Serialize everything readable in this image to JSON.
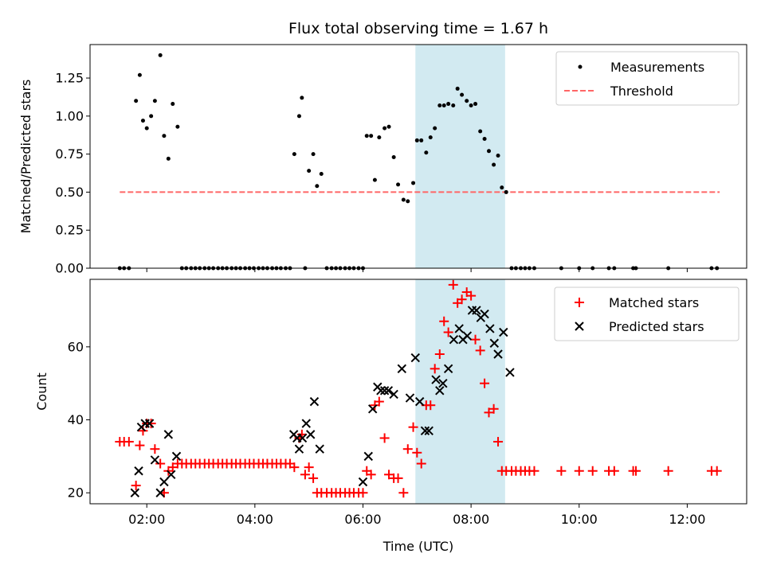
{
  "chart_data": {
    "type": "scatter",
    "title": "Flux total observing time = 1.67 h",
    "xlabel": "Time (UTC)",
    "x_unit": "hours since 00:00 UTC",
    "xlim": [
      0.95,
      13.1
    ],
    "xticks": [
      2,
      4,
      6,
      8,
      10,
      12
    ],
    "xtick_labels": [
      "02:00",
      "04:00",
      "06:00",
      "08:00",
      "10:00",
      "12:00"
    ],
    "highlight_span": {
      "start": 6.97,
      "end": 8.63,
      "color": "#add8e6"
    },
    "colors": {
      "measurement": "#000000",
      "threshold": "#ff6666",
      "matched": "#ff0000",
      "predicted": "#000000",
      "span": "#add8e6"
    },
    "panels": {
      "top": {
        "ylabel": "Matched/Predicted stars",
        "ylim": [
          0,
          1.47
        ],
        "yticks": [
          0,
          0.25,
          0.5,
          0.75,
          1.0,
          1.25
        ],
        "ytick_labels": [
          "0.00",
          "0.25",
          "0.50",
          "0.75",
          "1.00",
          "1.25"
        ],
        "legend": {
          "position": "upper right",
          "entries": [
            "Measurements",
            "Threshold"
          ]
        },
        "threshold": {
          "value": 0.5,
          "x_start": 1.5,
          "x_end": 12.6
        },
        "measurements": {
          "x": [
            1.5,
            1.58,
            1.67,
            1.8,
            1.87,
            1.93,
            2.0,
            2.08,
            2.15,
            2.25,
            2.32,
            2.4,
            2.48,
            2.57,
            2.65,
            2.73,
            2.82,
            2.9,
            2.98,
            3.07,
            3.15,
            3.23,
            3.32,
            3.4,
            3.48,
            3.57,
            3.65,
            3.73,
            3.82,
            3.9,
            3.98,
            4.07,
            4.15,
            4.23,
            4.32,
            4.4,
            4.48,
            4.57,
            4.65,
            4.73,
            4.82,
            4.87,
            4.93,
            5.0,
            5.08,
            5.15,
            5.23,
            5.33,
            5.42,
            5.5,
            5.58,
            5.67,
            5.75,
            5.83,
            5.92,
            6.0,
            6.07,
            6.15,
            6.22,
            6.3,
            6.4,
            6.48,
            6.57,
            6.65,
            6.75,
            6.83,
            6.93,
            7.0,
            7.08,
            7.17,
            7.25,
            7.33,
            7.42,
            7.5,
            7.58,
            7.67,
            7.75,
            7.83,
            7.92,
            8.0,
            8.08,
            8.17,
            8.25,
            8.33,
            8.42,
            8.5,
            8.57,
            8.65,
            8.75,
            8.83,
            8.92,
            9.0,
            9.08,
            9.17,
            9.67,
            10.0,
            10.25,
            10.55,
            10.65,
            11.0,
            11.05,
            11.65,
            12.45,
            12.55
          ],
          "y": [
            0,
            0,
            0,
            1.1,
            1.27,
            0.97,
            0.92,
            1.0,
            1.1,
            1.4,
            0.87,
            0.72,
            1.08,
            0.93,
            0,
            0,
            0,
            0,
            0,
            0,
            0,
            0,
            0,
            0,
            0,
            0,
            0,
            0,
            0,
            0,
            0,
            0,
            0,
            0,
            0,
            0,
            0,
            0,
            0,
            0.75,
            1.0,
            1.12,
            0,
            0.64,
            0.75,
            0.54,
            0.62,
            0,
            0,
            0,
            0,
            0,
            0,
            0,
            0,
            0,
            0.87,
            0.87,
            0.58,
            0.86,
            0.92,
            0.93,
            0.73,
            0.55,
            0.45,
            0.44,
            0.56,
            0.84,
            0.84,
            0.76,
            0.86,
            0.92,
            1.07,
            1.07,
            1.08,
            1.07,
            1.18,
            1.14,
            1.1,
            1.07,
            1.08,
            0.9,
            0.85,
            0.77,
            0.68,
            0.74,
            0.53,
            0.5,
            0,
            0,
            0,
            0,
            0,
            0,
            0,
            0,
            0,
            0,
            0,
            0,
            0,
            0,
            0,
            0
          ]
        }
      },
      "bottom": {
        "ylabel": "Count",
        "ylim": [
          17,
          78.5
        ],
        "yticks": [
          20,
          40,
          60
        ],
        "ytick_labels": [
          "20",
          "40",
          "60"
        ],
        "legend": {
          "position": "upper right",
          "entries": [
            "Matched stars",
            "Predicted stars"
          ]
        },
        "series": [
          {
            "name": "Matched stars",
            "marker": "+",
            "color": "#ff0000",
            "x": [
              1.5,
              1.58,
              1.67,
              1.8,
              1.87,
              1.93,
              2.0,
              2.08,
              2.15,
              2.25,
              2.32,
              2.4,
              2.48,
              2.57,
              2.65,
              2.73,
              2.82,
              2.9,
              2.98,
              3.07,
              3.15,
              3.23,
              3.32,
              3.4,
              3.48,
              3.57,
              3.65,
              3.73,
              3.82,
              3.9,
              3.98,
              4.07,
              4.15,
              4.23,
              4.32,
              4.4,
              4.48,
              4.57,
              4.65,
              4.73,
              4.82,
              4.87,
              4.93,
              5.0,
              5.08,
              5.15,
              5.23,
              5.33,
              5.42,
              5.5,
              5.58,
              5.67,
              5.75,
              5.83,
              5.92,
              6.0,
              6.07,
              6.15,
              6.22,
              6.3,
              6.4,
              6.48,
              6.57,
              6.65,
              6.75,
              6.83,
              6.93,
              7.0,
              7.08,
              7.17,
              7.25,
              7.33,
              7.42,
              7.5,
              7.58,
              7.67,
              7.75,
              7.83,
              7.92,
              8.0,
              8.08,
              8.17,
              8.25,
              8.33,
              8.42,
              8.5,
              8.57,
              8.65,
              8.75,
              8.83,
              8.92,
              9.0,
              9.08,
              9.17,
              9.67,
              10.0,
              10.25,
              10.55,
              10.65,
              11.0,
              11.05,
              11.65,
              12.45,
              12.55
            ],
            "y": [
              34,
              34,
              34,
              22,
              33,
              37,
              39,
              39,
              32,
              28,
              20,
              26,
              27,
              28,
              28,
              28,
              28,
              28,
              28,
              28,
              28,
              28,
              28,
              28,
              28,
              28,
              28,
              28,
              28,
              28,
              28,
              28,
              28,
              28,
              28,
              28,
              28,
              28,
              28,
              27,
              35,
              36,
              25,
              27,
              24,
              20,
              20,
              20,
              20,
              20,
              20,
              20,
              20,
              20,
              20,
              20,
              26,
              25,
              44,
              45,
              35,
              25,
              24,
              24,
              20,
              32,
              38,
              31,
              28,
              44,
              44,
              54,
              58,
              67,
              64,
              77,
              72,
              73,
              75,
              74,
              62,
              59,
              50,
              42,
              43,
              34,
              26,
              26,
              26,
              26,
              26,
              26,
              26,
              26,
              26,
              26,
              26,
              26,
              26,
              26,
              26,
              26,
              26,
              26
            ]
          },
          {
            "name": "Predicted stars",
            "marker": "x",
            "color": "#000000",
            "x": [
              1.78,
              1.85,
              1.9,
              1.97,
              2.05,
              2.15,
              2.25,
              2.32,
              2.4,
              2.45,
              2.55,
              4.72,
              4.78,
              4.82,
              4.88,
              4.95,
              5.03,
              5.1,
              5.2,
              6.0,
              6.1,
              6.18,
              6.27,
              6.33,
              6.4,
              6.47,
              6.57,
              6.72,
              6.87,
              6.97,
              7.05,
              7.15,
              7.22,
              7.35,
              7.42,
              7.48,
              7.58,
              7.68,
              7.78,
              7.85,
              7.93,
              8.02,
              8.1,
              8.18,
              8.25,
              8.35,
              8.43,
              8.5,
              8.6,
              8.72
            ],
            "y": [
              20,
              26,
              38,
              39,
              39,
              29,
              20,
              23,
              36,
              25,
              30,
              36,
              35,
              32,
              35,
              39,
              36,
              45,
              32,
              23,
              30,
              43,
              49,
              48,
              48,
              48,
              47,
              54,
              46,
              57,
              45,
              37,
              37,
              51,
              48,
              50,
              54,
              62,
              65,
              62,
              63,
              70,
              70,
              68,
              69,
              65,
              61,
              58,
              64,
              53
            ]
          }
        ]
      }
    }
  }
}
